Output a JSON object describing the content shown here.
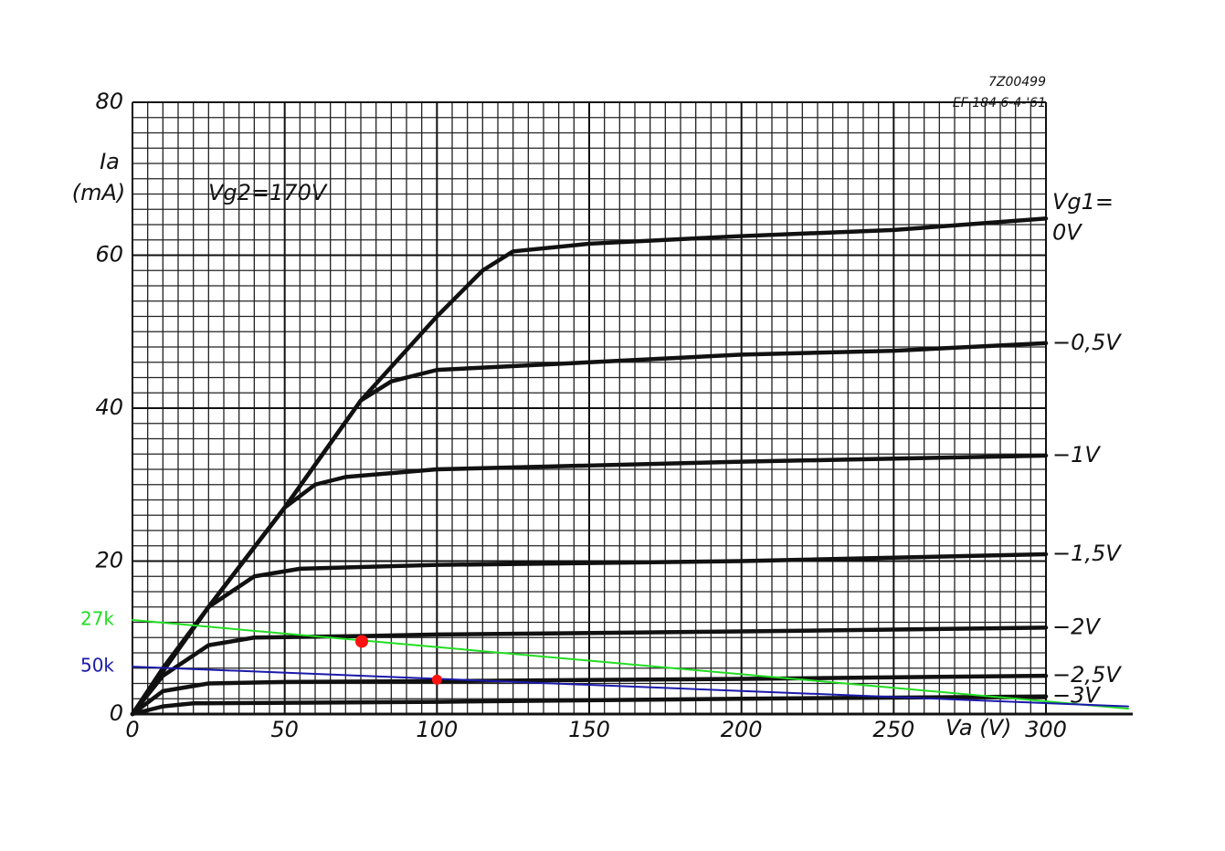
{
  "chart_data": {
    "type": "line",
    "stamp": "7Z00499",
    "stamp_detail": "EF 184   6-4-'61",
    "y_label": "Ia",
    "y_unit": "(mA)",
    "x_label": "Va (V)",
    "annotation": "Vg2=170V",
    "legend_title": "Vg1=",
    "xlim": [
      0,
      300
    ],
    "ylim": [
      0,
      80
    ],
    "xticks": [
      0,
      50,
      100,
      150,
      200,
      250,
      300
    ],
    "yticks": [
      0,
      20,
      40,
      60,
      80
    ],
    "grid": true,
    "minor_grid": {
      "x": 5,
      "y": 2
    },
    "series": [
      {
        "name": "0V",
        "color": "#111111",
        "x": [
          0,
          25,
          50,
          75,
          100,
          115,
          125,
          150,
          200,
          250,
          300
        ],
        "values": [
          0,
          14,
          27,
          41,
          52,
          58,
          60.5,
          61.5,
          62.5,
          63.3,
          64.8
        ]
      },
      {
        "name": "−0,5V",
        "color": "#111111",
        "x": [
          0,
          25,
          50,
          75,
          85,
          100,
          150,
          200,
          250,
          300
        ],
        "values": [
          0,
          14,
          27,
          41,
          43.5,
          45,
          46,
          47,
          47.5,
          48.5
        ]
      },
      {
        "name": "−1V",
        "color": "#111111",
        "x": [
          0,
          25,
          50,
          60,
          70,
          100,
          150,
          200,
          300
        ],
        "values": [
          0,
          14,
          27,
          30,
          31,
          32,
          32.5,
          33,
          33.8
        ]
      },
      {
        "name": "−1,5V",
        "color": "#111111",
        "x": [
          0,
          10,
          25,
          40,
          55,
          100,
          200,
          300
        ],
        "values": [
          0,
          6,
          14,
          18,
          19,
          19.5,
          20,
          20.9
        ]
      },
      {
        "name": "−2V",
        "color": "#111111",
        "x": [
          0,
          10,
          25,
          40,
          75,
          100,
          200,
          300
        ],
        "values": [
          0,
          5,
          9,
          10,
          10.2,
          10.4,
          10.8,
          11.3
        ]
      },
      {
        "name": "−2,5V",
        "color": "#111111",
        "x": [
          0,
          10,
          25,
          50,
          100,
          200,
          300
        ],
        "values": [
          0,
          3,
          4,
          4.2,
          4.3,
          4.6,
          5.0
        ]
      },
      {
        "name": "−3V",
        "color": "#111111",
        "x": [
          0,
          10,
          20,
          100,
          200,
          300
        ],
        "values": [
          0,
          1,
          1.4,
          1.6,
          2.0,
          2.3
        ]
      }
    ],
    "load_lines": [
      {
        "name": "27k",
        "color": "#22dd22",
        "x": [
          0,
          327
        ],
        "values": [
          12.3,
          0.7
        ]
      },
      {
        "name": "50k",
        "color": "#1a1aaa",
        "x": [
          0,
          327
        ],
        "values": [
          6.2,
          1.0
        ]
      }
    ],
    "points": {
      "color": "#ff1111",
      "x": [
        75.3,
        100
      ],
      "values": [
        9.5,
        4.5
      ]
    }
  }
}
